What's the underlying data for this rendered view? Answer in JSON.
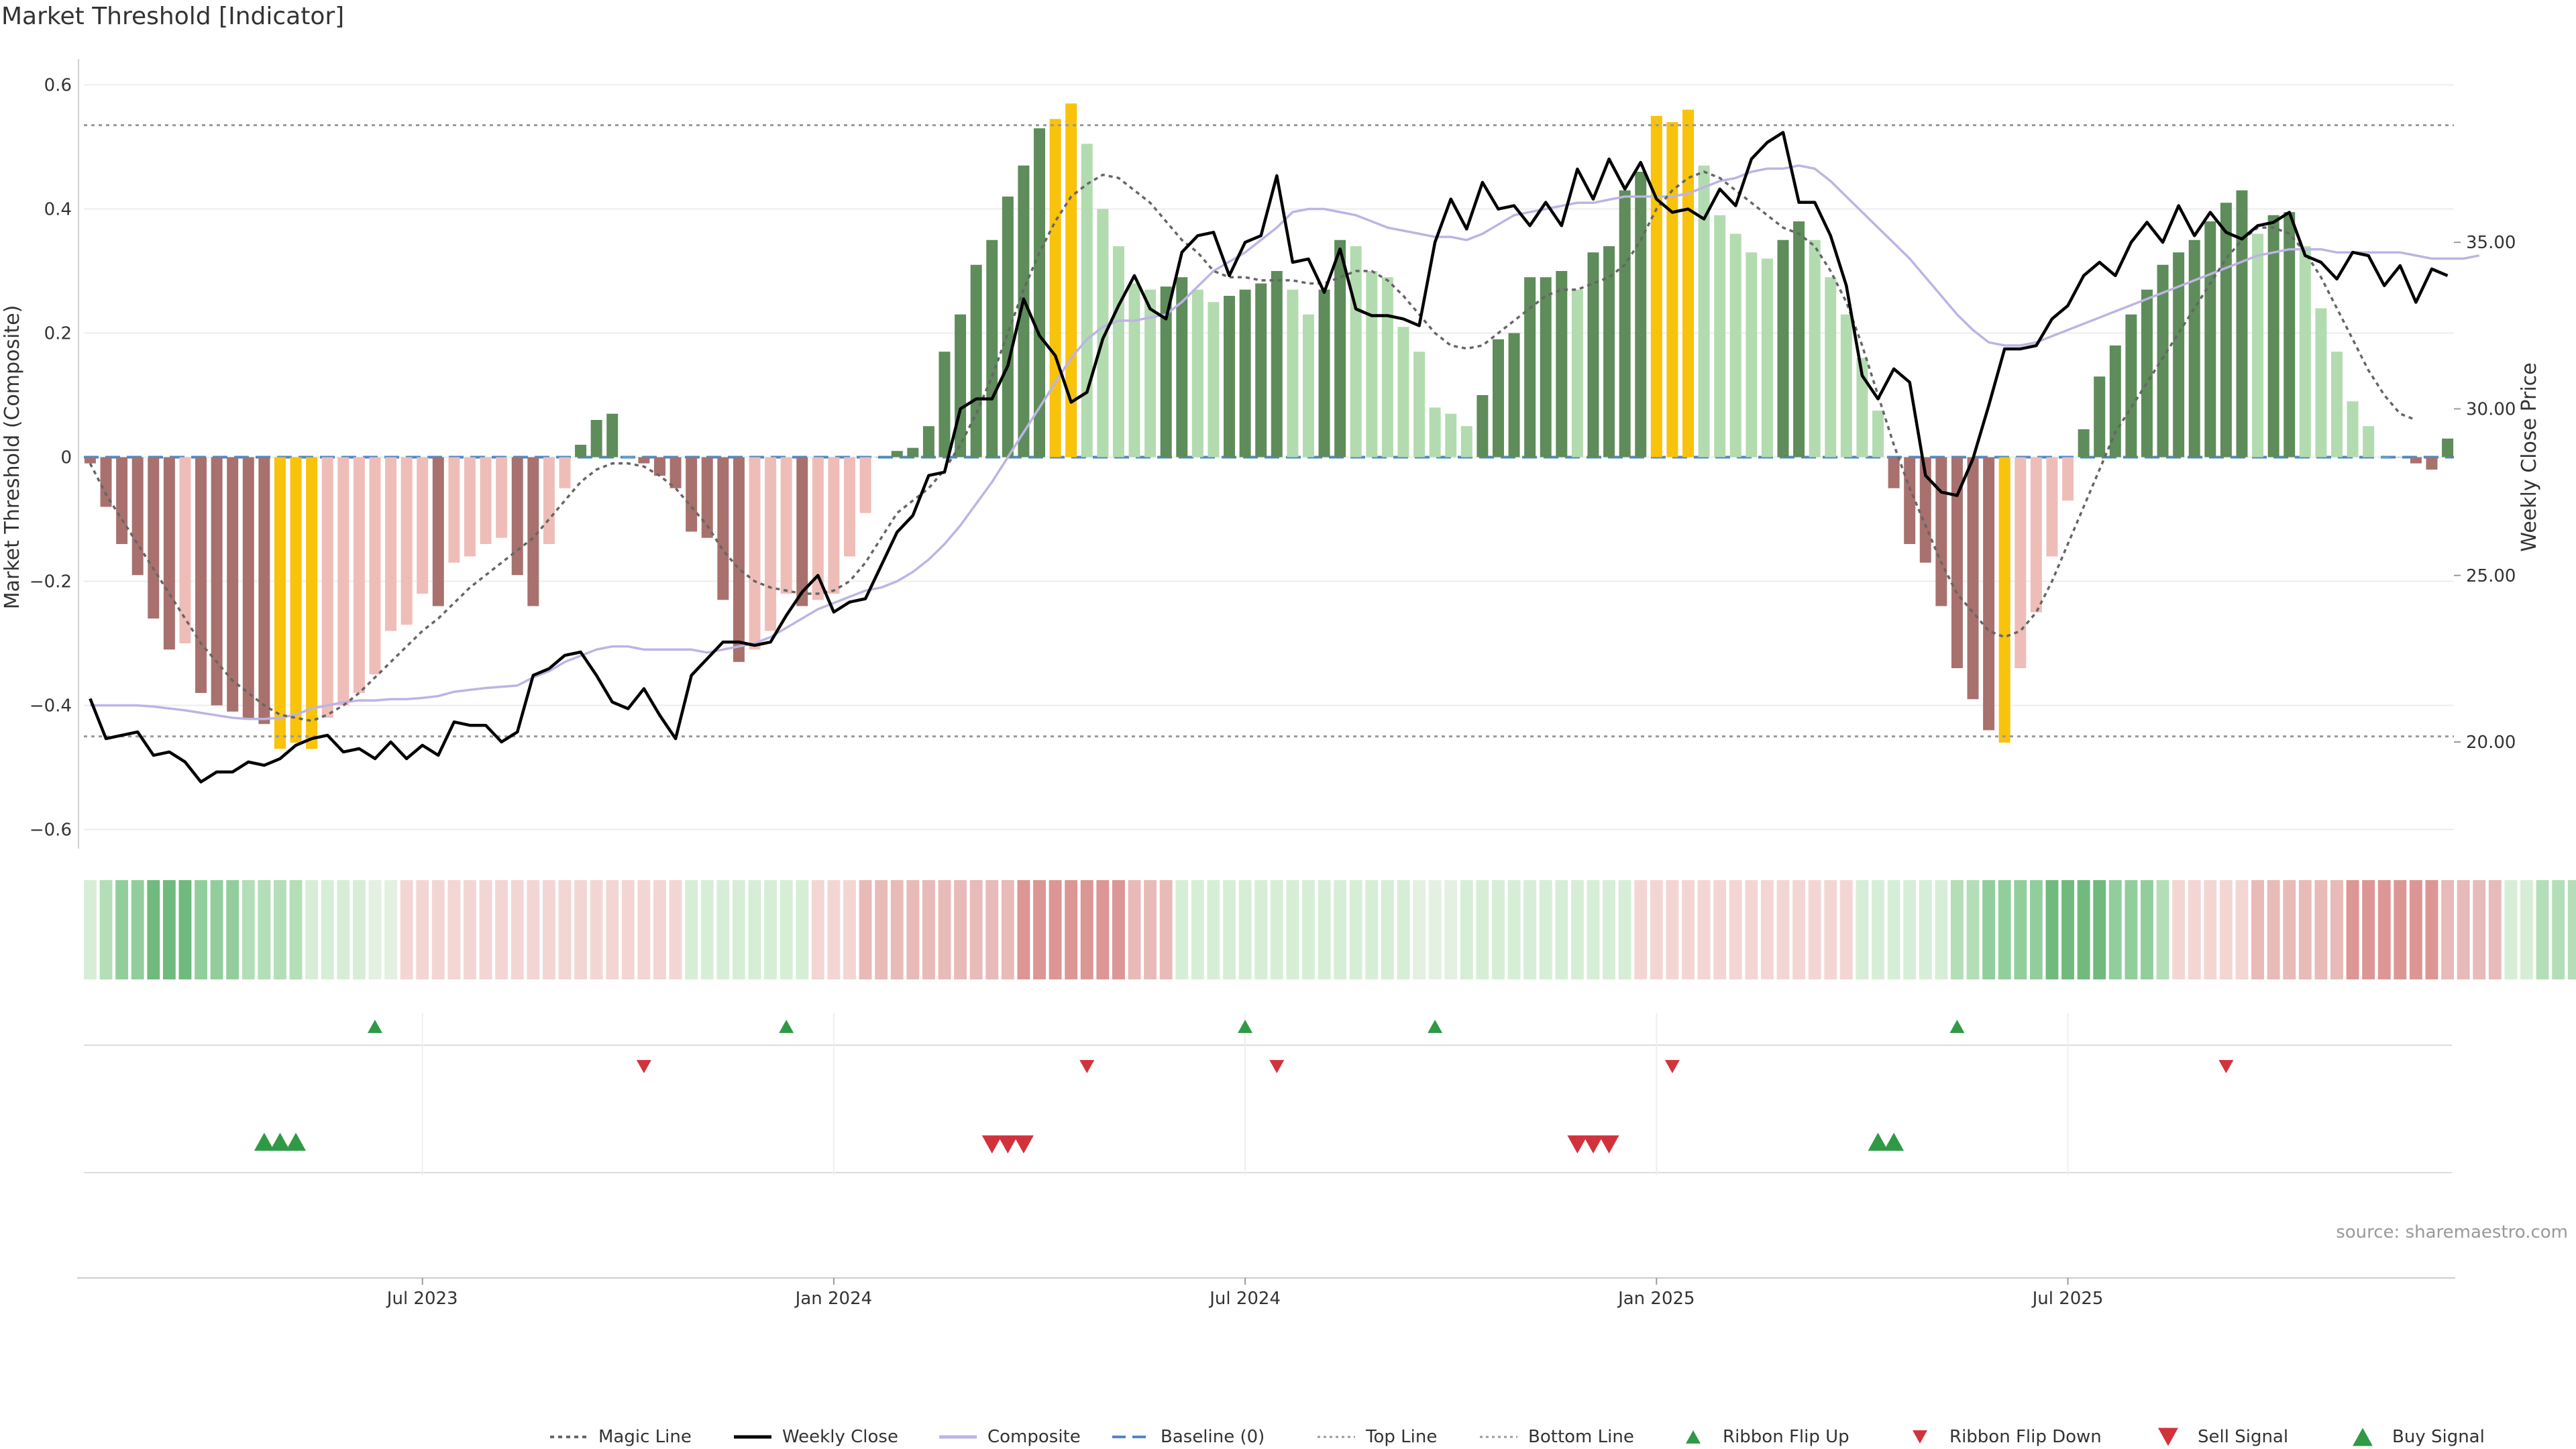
{
  "title": "Market Threshold [Indicator]",
  "source": "source: sharemaestro.com",
  "chart_data": {
    "type": "bar",
    "x_ticks": [
      "Jul 2023",
      "Jan 2024",
      "Jul 2024",
      "Jan 2025",
      "Jul 2025"
    ],
    "x_tick_weeks": [
      21,
      47,
      73,
      99,
      125
    ],
    "ylabel_left": "Market Threshold (Composite)",
    "ylabel_right": "Weekly Close Price",
    "ylim_left": [
      -0.62,
      0.62
    ],
    "yticks_left": [
      0.6,
      0.4,
      0.2,
      0,
      -0.2,
      -0.4,
      -0.6
    ],
    "ytick_labels_left": [
      "0.6",
      "0.4",
      "0.2",
      "0",
      "−0.2",
      "−0.4",
      "−0.6"
    ],
    "ylim_right": [
      17.0,
      40.1
    ],
    "yticks_right": [
      35,
      30,
      25,
      20
    ],
    "ytick_labels_right": [
      "35.00",
      "30.00",
      "25.00",
      "20.00"
    ],
    "top_line": 0.535,
    "bottom_line": -0.45,
    "composite_bars": [
      -0.01,
      -0.08,
      -0.14,
      -0.19,
      -0.26,
      -0.31,
      -0.3,
      -0.38,
      -0.4,
      -0.41,
      -0.42,
      -0.43,
      -0.47,
      -0.46,
      -0.47,
      -0.42,
      -0.4,
      -0.38,
      -0.35,
      -0.28,
      -0.27,
      -0.22,
      -0.24,
      -0.17,
      -0.16,
      -0.14,
      -0.13,
      -0.19,
      -0.24,
      -0.14,
      -0.05,
      0.02,
      0.06,
      0.07,
      0,
      -0.01,
      -0.03,
      -0.05,
      -0.12,
      -0.13,
      -0.23,
      -0.33,
      -0.31,
      -0.28,
      -0.22,
      -0.24,
      -0.23,
      -0.22,
      -0.16,
      -0.09,
      0,
      0.01,
      0.015,
      0.05,
      0.17,
      0.23,
      0.31,
      0.35,
      0.42,
      0.47,
      0.53,
      0.545,
      0.57,
      0.505,
      0.4,
      0.34,
      0.28,
      0.27,
      0.275,
      0.29,
      0.27,
      0.25,
      0.26,
      0.27,
      0.28,
      0.3,
      0.27,
      0.23,
      0.27,
      0.35,
      0.34,
      0.3,
      0.29,
      0.21,
      0.17,
      0.08,
      0.07,
      0.05,
      0.1,
      0.19,
      0.2,
      0.29,
      0.29,
      0.3,
      0.27,
      0.33,
      0.34,
      0.43,
      0.46,
      0.55,
      0.54,
      0.56,
      0.47,
      0.39,
      0.36,
      0.33,
      0.32,
      0.35,
      0.38,
      0.35,
      0.29,
      0.23,
      0.16,
      0.075,
      -0.05,
      -0.14,
      -0.17,
      -0.24,
      -0.34,
      -0.39,
      -0.44,
      -0.46,
      -0.34,
      -0.25,
      -0.16,
      -0.07,
      0.045,
      0.13,
      0.18,
      0.23,
      0.27,
      0.31,
      0.33,
      0.35,
      0.38,
      0.41,
      0.43,
      0.36,
      0.39,
      0.395,
      0.34,
      0.24,
      0.17,
      0.09,
      0.05,
      0,
      0,
      -0.01,
      -0.02,
      0.03
    ],
    "weekly_close": [
      21.3,
      20.1,
      20.2,
      20.3,
      19.6,
      19.7,
      19.4,
      18.8,
      19.1,
      19.1,
      19.4,
      19.3,
      19.5,
      19.9,
      20.1,
      20.2,
      19.7,
      19.8,
      19.5,
      20.0,
      19.5,
      19.9,
      19.6,
      20.6,
      20.5,
      20.5,
      20.0,
      20.3,
      22.0,
      22.2,
      22.6,
      22.7,
      22.0,
      21.2,
      21.0,
      21.6,
      20.8,
      20.1,
      22.0,
      22.5,
      23.0,
      23.0,
      22.9,
      23.0,
      23.8,
      24.5,
      25.0,
      23.9,
      24.2,
      24.3,
      25.3,
      26.3,
      26.8,
      28.0,
      28.1,
      30.0,
      30.3,
      30.3,
      31.3,
      33.3,
      32.2,
      31.6,
      30.2,
      30.5,
      32.1,
      33.1,
      34.0,
      33.0,
      32.7,
      34.7,
      35.2,
      35.3,
      34.0,
      35.0,
      35.2,
      37.0,
      34.4,
      34.5,
      33.5,
      34.8,
      33.0,
      32.8,
      32.8,
      32.7,
      32.5,
      35.0,
      36.3,
      35.4,
      36.8,
      36.0,
      36.1,
      35.5,
      36.2,
      35.5,
      37.2,
      36.3,
      37.5,
      36.6,
      37.4,
      36.3,
      35.9,
      36.0,
      35.7,
      36.6,
      36.1,
      37.5,
      38.0,
      38.3,
      36.2,
      36.2,
      35.2,
      33.7,
      31.0,
      30.3,
      31.2,
      30.8,
      28.0,
      27.5,
      27.4,
      28.5,
      30.1,
      31.8,
      31.8,
      31.9,
      32.7,
      33.1,
      34.0,
      34.4,
      34.0,
      35.0,
      35.6,
      35.0,
      36.1,
      35.2,
      35.9,
      35.3,
      35.1,
      35.5,
      35.6,
      35.9,
      34.6,
      34.4,
      33.9,
      34.7,
      34.6,
      33.7,
      34.3,
      33.2,
      34.2,
      34.0
    ],
    "composite_line": [
      -0.4,
      -0.4,
      -0.4,
      -0.4,
      -0.402,
      -0.405,
      -0.408,
      -0.412,
      -0.416,
      -0.42,
      -0.422,
      -0.422,
      -0.42,
      -0.415,
      -0.405,
      -0.4,
      -0.395,
      -0.392,
      -0.392,
      -0.39,
      -0.39,
      -0.388,
      -0.385,
      -0.378,
      -0.375,
      -0.372,
      -0.37,
      -0.368,
      -0.355,
      -0.345,
      -0.33,
      -0.32,
      -0.31,
      -0.305,
      -0.305,
      -0.31,
      -0.31,
      -0.31,
      -0.31,
      -0.315,
      -0.31,
      -0.305,
      -0.3,
      -0.29,
      -0.275,
      -0.26,
      -0.245,
      -0.235,
      -0.225,
      -0.215,
      -0.21,
      -0.2,
      -0.185,
      -0.165,
      -0.14,
      -0.11,
      -0.075,
      -0.04,
      0,
      0.04,
      0.08,
      0.12,
      0.16,
      0.19,
      0.21,
      0.22,
      0.22,
      0.225,
      0.23,
      0.25,
      0.275,
      0.3,
      0.315,
      0.33,
      0.35,
      0.37,
      0.395,
      0.4,
      0.4,
      0.395,
      0.39,
      0.38,
      0.37,
      0.365,
      0.36,
      0.355,
      0.355,
      0.35,
      0.36,
      0.375,
      0.39,
      0.395,
      0.4,
      0.405,
      0.41,
      0.41,
      0.415,
      0.42,
      0.42,
      0.42,
      0.42,
      0.425,
      0.435,
      0.445,
      0.45,
      0.46,
      0.465,
      0.465,
      0.47,
      0.465,
      0.445,
      0.42,
      0.395,
      0.37,
      0.345,
      0.32,
      0.29,
      0.26,
      0.23,
      0.205,
      0.185,
      0.18,
      0.18,
      0.185,
      0.195,
      0.205,
      0.215,
      0.225,
      0.235,
      0.245,
      0.255,
      0.265,
      0.275,
      0.285,
      0.295,
      0.305,
      0.315,
      0.325,
      0.33,
      0.335,
      0.335,
      0.335,
      0.33,
      0.33,
      0.33,
      0.33,
      0.33,
      0.325,
      0.32,
      0.32,
      0.32,
      0.325
    ],
    "magic_line": [
      -0.01,
      -0.06,
      -0.1,
      -0.14,
      -0.18,
      -0.22,
      -0.26,
      -0.3,
      -0.33,
      -0.36,
      -0.38,
      -0.4,
      -0.415,
      -0.42,
      -0.425,
      -0.415,
      -0.4,
      -0.38,
      -0.355,
      -0.33,
      -0.305,
      -0.28,
      -0.26,
      -0.235,
      -0.21,
      -0.19,
      -0.17,
      -0.15,
      -0.13,
      -0.1,
      -0.07,
      -0.04,
      -0.02,
      -0.01,
      -0.01,
      -0.015,
      -0.03,
      -0.05,
      -0.08,
      -0.11,
      -0.15,
      -0.18,
      -0.2,
      -0.21,
      -0.215,
      -0.22,
      -0.22,
      -0.215,
      -0.2,
      -0.17,
      -0.13,
      -0.09,
      -0.07,
      -0.05,
      -0.02,
      0.02,
      0.07,
      0.13,
      0.2,
      0.27,
      0.33,
      0.38,
      0.42,
      0.44,
      0.455,
      0.45,
      0.43,
      0.41,
      0.38,
      0.35,
      0.33,
      0.3,
      0.29,
      0.29,
      0.285,
      0.285,
      0.285,
      0.28,
      0.28,
      0.29,
      0.3,
      0.3,
      0.285,
      0.26,
      0.23,
      0.2,
      0.18,
      0.175,
      0.18,
      0.2,
      0.22,
      0.24,
      0.26,
      0.27,
      0.27,
      0.28,
      0.29,
      0.31,
      0.35,
      0.4,
      0.43,
      0.45,
      0.46,
      0.45,
      0.43,
      0.41,
      0.39,
      0.37,
      0.36,
      0.34,
      0.3,
      0.25,
      0.18,
      0.1,
      0.02,
      -0.05,
      -0.11,
      -0.17,
      -0.22,
      -0.25,
      -0.28,
      -0.29,
      -0.28,
      -0.25,
      -0.2,
      -0.14,
      -0.08,
      -0.02,
      0.04,
      0.08,
      0.12,
      0.16,
      0.2,
      0.24,
      0.28,
      0.32,
      0.35,
      0.37,
      0.37,
      0.36,
      0.33,
      0.29,
      0.24,
      0.19,
      0.14,
      0.1,
      0.07,
      0.06
    ],
    "regime_levels": [
      1,
      2,
      3,
      3,
      4,
      4,
      4,
      3,
      3,
      3,
      2,
      2,
      2,
      2,
      1,
      1,
      1,
      1,
      0,
      0,
      -1,
      -1,
      -1,
      -1,
      -1,
      -1,
      -1,
      -1,
      -1,
      -1,
      -1,
      -1,
      -1,
      -1,
      -1,
      -1,
      -1,
      -1,
      1,
      1,
      1,
      1,
      1,
      1,
      1,
      1,
      -1,
      -1,
      -1,
      -2,
      -2,
      -2,
      -2,
      -2,
      -2,
      -2,
      -2,
      -2,
      -2,
      -3,
      -3,
      -3,
      -3,
      -3,
      -3,
      -3,
      -2,
      -2,
      -2,
      1,
      1,
      1,
      1,
      1,
      1,
      1,
      1,
      1,
      1,
      1,
      1,
      1,
      1,
      1,
      0,
      0,
      0,
      1,
      1,
      1,
      1,
      1,
      1,
      1,
      1,
      1,
      1,
      1,
      -1,
      -1,
      -1,
      -1,
      -1,
      -1,
      -1,
      -1,
      -1,
      -1,
      -1,
      -1,
      -1,
      -1,
      1,
      1,
      1,
      1,
      1,
      1,
      2,
      2,
      3,
      3,
      3,
      3,
      4,
      4,
      4,
      4,
      3,
      3,
      3,
      2,
      -1,
      -1,
      -1,
      -1,
      -1,
      -2,
      -2,
      -2,
      -2,
      -2,
      -2,
      -3,
      -3,
      -3,
      -3,
      -3,
      -3,
      -2,
      -2,
      -2,
      -2,
      1,
      1,
      2,
      2,
      2,
      2,
      2,
      2,
      2,
      2
    ],
    "ribbon_flip_up_weeks": [
      18,
      44,
      73,
      85,
      118
    ],
    "ribbon_flip_down_weeks": [
      35,
      63,
      75,
      100,
      135
    ],
    "buy_signal_weeks": [
      11,
      12,
      13,
      113,
      114
    ],
    "sell_signal_weeks": [
      57,
      58,
      59,
      94,
      95,
      96
    ],
    "legend": [
      "Magic Line",
      "Weekly Close",
      "Composite",
      "Baseline (0)",
      "Top Line",
      "Bottom Line",
      "Ribbon Flip Up",
      "Ribbon Flip Down",
      "Sell Signal",
      "Buy Signal"
    ],
    "colors": {
      "bull_strong": "#5e8c5a",
      "bull_light": "#b3dbb0",
      "bear_strong": "#a8716e",
      "bear_light": "#efbdb8",
      "extreme": "#f9c20b",
      "close": "#000000",
      "composite": "#bcb4e4",
      "magic": "#666666",
      "baseline": "#4f88c6",
      "threshold": "#999999",
      "signal_up": "#2f9a46",
      "signal_down": "#d2323c"
    }
  }
}
